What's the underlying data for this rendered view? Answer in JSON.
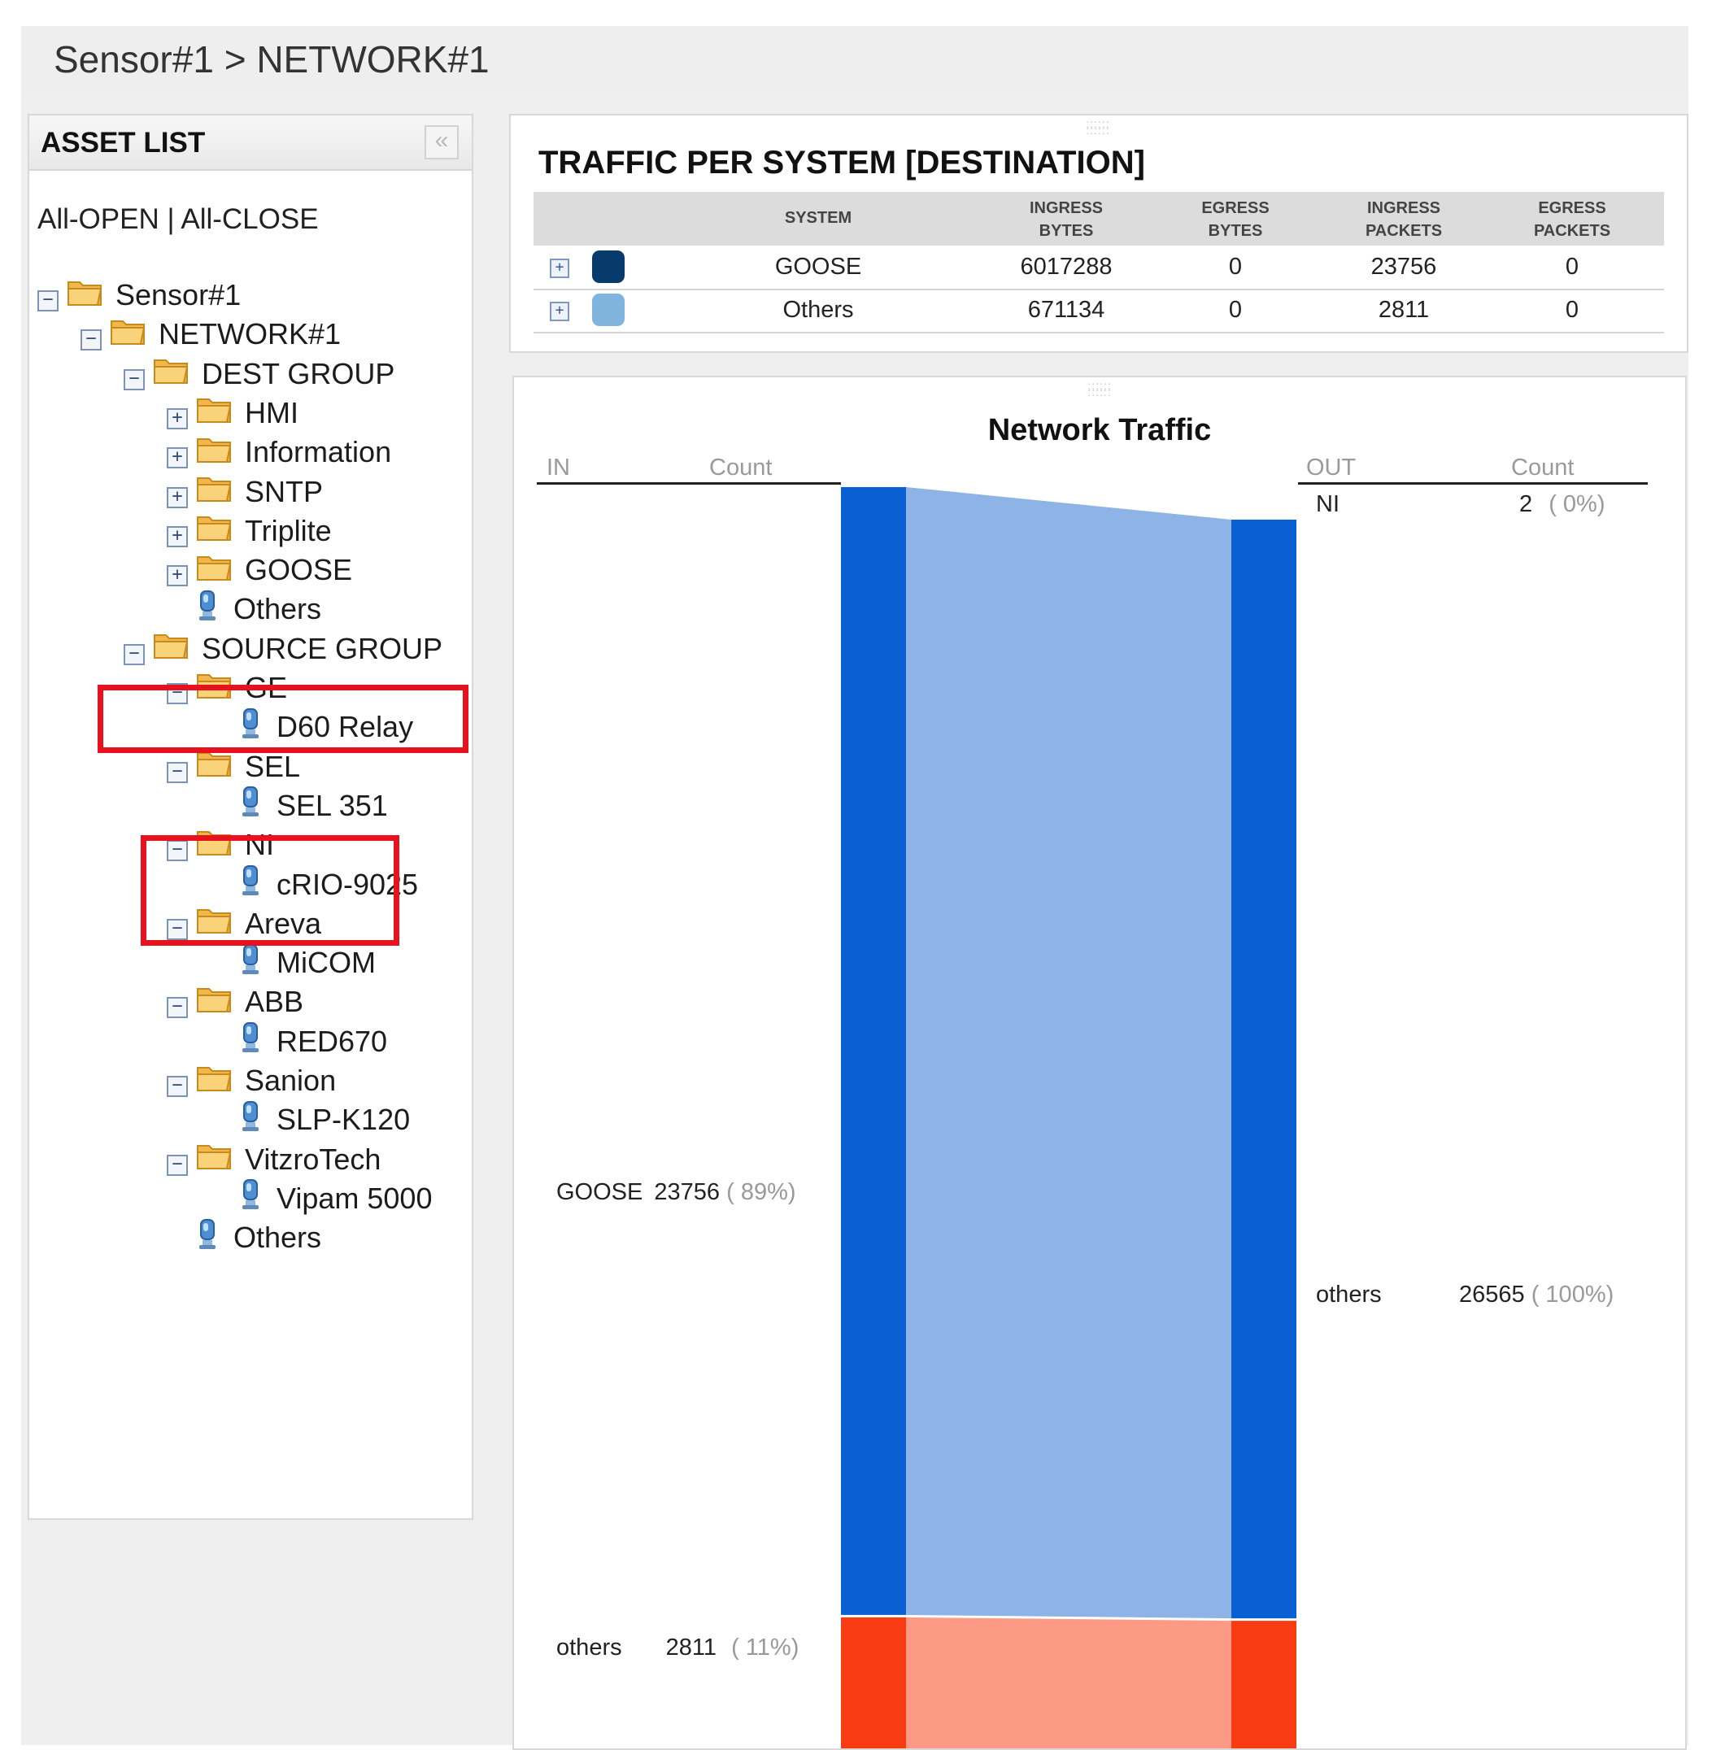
{
  "breadcrumb": "Sensor#1 > NETWORK#1",
  "asset_list": {
    "title": "ASSET LIST",
    "collapse_glyph": "«",
    "all_open_close": "All-OPEN | All-CLOSE",
    "tree": [
      {
        "label": "Sensor#1",
        "toggle": "−",
        "kind": "folder"
      },
      {
        "label": "NETWORK#1",
        "toggle": "−",
        "kind": "folder"
      },
      {
        "label": "DEST GROUP",
        "toggle": "−",
        "kind": "folder"
      },
      {
        "label": "HMI",
        "toggle": "+",
        "kind": "folder"
      },
      {
        "label": "Information",
        "toggle": "+",
        "kind": "folder"
      },
      {
        "label": "SNTP",
        "toggle": "+",
        "kind": "folder"
      },
      {
        "label": "Triplite",
        "toggle": "+",
        "kind": "folder"
      },
      {
        "label": "GOOSE",
        "toggle": "+",
        "kind": "folder"
      },
      {
        "label": "Others",
        "toggle": "",
        "kind": "device"
      },
      {
        "label": "SOURCE GROUP",
        "toggle": "−",
        "kind": "folder"
      },
      {
        "label": "GE",
        "toggle": "−",
        "kind": "folder"
      },
      {
        "label": "D60 Relay",
        "toggle": "",
        "kind": "device"
      },
      {
        "label": "SEL",
        "toggle": "−",
        "kind": "folder"
      },
      {
        "label": "SEL 351",
        "toggle": "",
        "kind": "device"
      },
      {
        "label": "NI",
        "toggle": "−",
        "kind": "folder"
      },
      {
        "label": "cRIO-9025",
        "toggle": "",
        "kind": "device"
      },
      {
        "label": "Areva",
        "toggle": "−",
        "kind": "folder"
      },
      {
        "label": "MiCOM",
        "toggle": "",
        "kind": "device"
      },
      {
        "label": "ABB",
        "toggle": "−",
        "kind": "folder"
      },
      {
        "label": "RED670",
        "toggle": "",
        "kind": "device"
      },
      {
        "label": "Sanion",
        "toggle": "−",
        "kind": "folder"
      },
      {
        "label": "SLP-K120",
        "toggle": "",
        "kind": "device"
      },
      {
        "label": "VitzroTech",
        "toggle": "−",
        "kind": "folder"
      },
      {
        "label": "Vipam 5000",
        "toggle": "",
        "kind": "device"
      },
      {
        "label": "Others",
        "toggle": "",
        "kind": "device"
      }
    ]
  },
  "traffic_per_system": {
    "title": "TRAFFIC PER SYSTEM [DESTINATION]",
    "columns": [
      "SYSTEM",
      "INGRESS BYTES",
      "EGRESS BYTES",
      "INGRESS PACKETS",
      "EGRESS PACKETS"
    ],
    "rows": [
      {
        "expand": "+",
        "color": "#073b6b",
        "system": "GOOSE",
        "ingress_bytes": "6017288",
        "egress_bytes": "0",
        "ingress_packets": "23756",
        "egress_packets": "0"
      },
      {
        "expand": "+",
        "color": "#7fb4de",
        "system": "Others",
        "ingress_bytes": "671134",
        "egress_bytes": "0",
        "ingress_packets": "2811",
        "egress_packets": "0"
      }
    ]
  },
  "network_traffic": {
    "title": "Network Traffic",
    "in_header": "IN",
    "in_count_header": "Count",
    "out_header": "OUT",
    "out_count_header": "Count",
    "colors": {
      "blue": "#0a5fd2",
      "blue_light": "#8eb3e6",
      "red": "#f73b12",
      "red_light": "#fc9a86"
    },
    "chart_data": {
      "type": "sankey",
      "in": [
        {
          "name": "GOOSE",
          "count": 23756,
          "count_label": "23756",
          "pct_label": "( 89%)"
        },
        {
          "name": "others",
          "count": 2811,
          "count_label": "2811",
          "pct_label": "( 11%)"
        }
      ],
      "out": [
        {
          "name": "NI",
          "count": 2,
          "count_label": "2",
          "pct_label": "( 0%)"
        },
        {
          "name": "others",
          "count": 26565,
          "count_label": "26565",
          "pct_label": "( 100%)"
        }
      ]
    }
  }
}
